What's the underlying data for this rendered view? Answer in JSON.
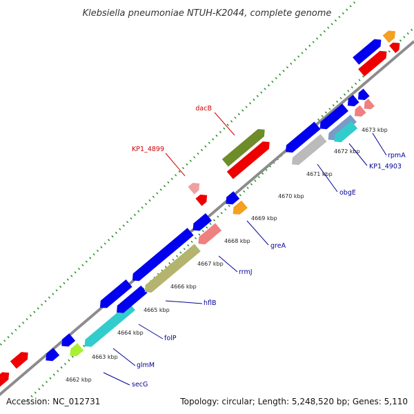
{
  "title": "Klebsiella pneumoniae NTUH-K2044, complete genome",
  "footer": {
    "accession": "Accession: NC_012731",
    "summary": "Topology: circular; Length: 5,248,520 bp; Genes: 5,110"
  },
  "colors": {
    "backbone": "#8c8c8c",
    "tick": "#1e8c1e",
    "forward_label": "#cc0000",
    "reverse_label": "#000099"
  },
  "kbp_labels": [
    "4662 kbp",
    "4663 kbp",
    "4664 kbp",
    "4665 kbp",
    "4666 kbp",
    "4667 kbp",
    "4668 kbp",
    "4669 kbp",
    "4670 kbp",
    "4671 kbp",
    "4672 kbp",
    "4673 kbp"
  ],
  "forward_genes": [
    {
      "name": "dacB",
      "color": "#6e8c2a"
    },
    {
      "name": "KP1_4899",
      "color": "#f0a0a0"
    }
  ],
  "reverse_genes": [
    {
      "name": "secG",
      "color": "#aaf032"
    },
    {
      "name": "glmM",
      "color": "#33cccc"
    },
    {
      "name": "folP",
      "color": "#0000ee"
    },
    {
      "name": "hflB",
      "color": "#b4b46e"
    },
    {
      "name": "rrmJ",
      "color": "#f08080"
    },
    {
      "name": "greA",
      "color": "#f5a020"
    },
    {
      "name": "obgE",
      "color": "#bbbbbb"
    },
    {
      "name": "KP1_4903",
      "color": "#33cccc"
    },
    {
      "name": "rpmA",
      "color": "#f08080"
    }
  ]
}
